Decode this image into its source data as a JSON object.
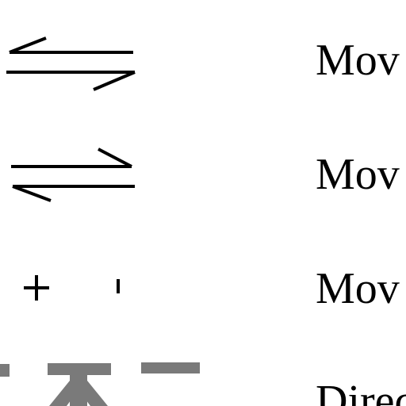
{
  "legend": {
    "rows": [
      {
        "symbol": "harpoons-left-over-right-icon",
        "label": "Mov"
      },
      {
        "symbol": "harpoons-right-over-left-icon",
        "label": "Mov"
      },
      {
        "symbol": "plus-minus-icon",
        "label": "Mov"
      },
      {
        "symbol": "gray-dash-symbol-icon",
        "label": "Direc"
      }
    ]
  },
  "colors": {
    "line": "#000000",
    "gray_symbol": "#7a7a7a"
  }
}
